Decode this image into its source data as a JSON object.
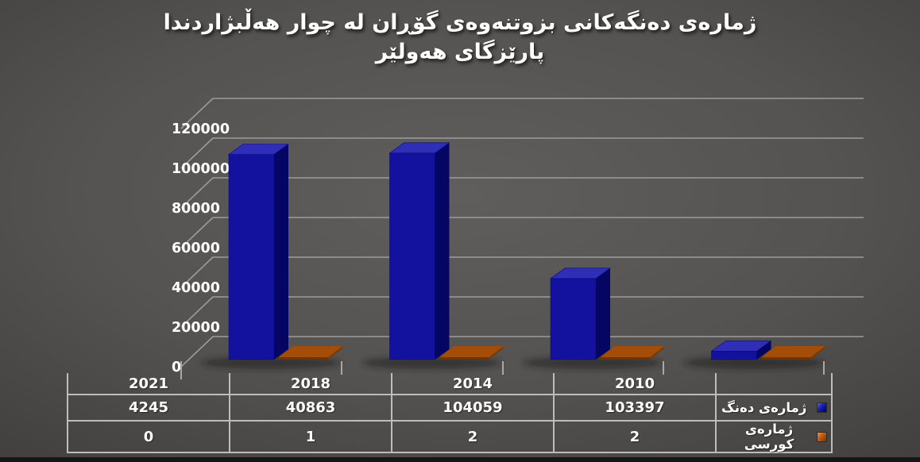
{
  "title": {
    "line1": "ژمارەی دەنگەکانی بزوتنەوەی گۆڕان لە چوار هەڵبژاردندا",
    "line2": "پارێزگای هەولێر"
  },
  "chart_data": {
    "type": "bar",
    "style": "3d-column",
    "title": "ژمارەی دەنگەکانی بزوتنەوەی گۆڕان لە چوار هەڵبژاردندا پارێزگای هەولێر",
    "categories": [
      "2010",
      "2014",
      "2018",
      "2021"
    ],
    "series": [
      {
        "name": "ژمارەی دەنگ",
        "color": "#12129e",
        "values": [
          103397,
          104059,
          40863,
          4245
        ]
      },
      {
        "name": "ژمارەی کورسی",
        "color": "#a34d08",
        "values": [
          2,
          2,
          1,
          0
        ]
      }
    ],
    "xlabel": "",
    "ylabel": "",
    "ylim": [
      0,
      120000
    ],
    "y_ticks": [
      0,
      20000,
      40000,
      60000,
      80000,
      100000,
      120000
    ],
    "grid": true,
    "legend_position": "data-table-left"
  },
  "colors": {
    "background_center": "#5c5a58",
    "background_edge": "#262525",
    "bar_votes_front": "#12129e",
    "bar_votes_top": "#2e2eb8",
    "bar_votes_side": "#050563",
    "bar_seats_top": "#a34d08",
    "bar_seats_front": "#6f3404",
    "gridline": "#9c9c9c",
    "table_border": "#bdbdbd",
    "text": "#ffffff"
  }
}
